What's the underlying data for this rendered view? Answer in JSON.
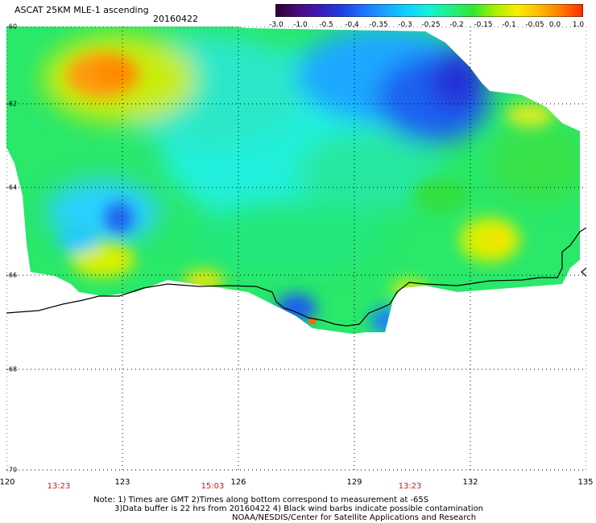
{
  "header": {
    "title": "ASCAT 25KM MLE-1 ascending",
    "date": "20160422"
  },
  "colorbar": {
    "ticks": [
      "-3.0",
      "-1.0",
      "-0.5",
      "-0.4",
      "-0.35",
      "-0.3",
      "-0.25",
      "-0.2",
      "-0.15",
      "-0.1",
      "-0.05",
      "0.0",
      "1.0"
    ],
    "colors": [
      "#2b0030",
      "#4b0a7a",
      "#3a1ab8",
      "#1f3fe0",
      "#1e72ff",
      "#1aa3ff",
      "#10d2ff",
      "#14f2d8",
      "#20f080",
      "#30e830",
      "#a8f000",
      "#f7ee00",
      "#ffba00",
      "#ff7a00",
      "#ff2a00"
    ]
  },
  "map": {
    "lat_labels": [
      "-60",
      "-62",
      "-64",
      "-66",
      "-68",
      "-70"
    ],
    "lon_labels": [
      "120",
      "123",
      "126",
      "129",
      "132",
      "135"
    ],
    "time_labels": [
      "13:23",
      "15:03",
      "13:23"
    ],
    "grid": true,
    "projection_extent": {
      "lon_min": 120,
      "lon_max": 135,
      "lat_top": -60,
      "lat_bottom": -70
    }
  },
  "notes": {
    "line1": "Note: 1) Times are GMT 2)Times along bottom correspond to measurement at -65S",
    "line2": "3)Data buffer is 22 hrs from 20160422 4) Black wind barbs indicate possible contamination",
    "line3": "NOAA/NESDIS/Center for Satellite Applications and Research"
  }
}
